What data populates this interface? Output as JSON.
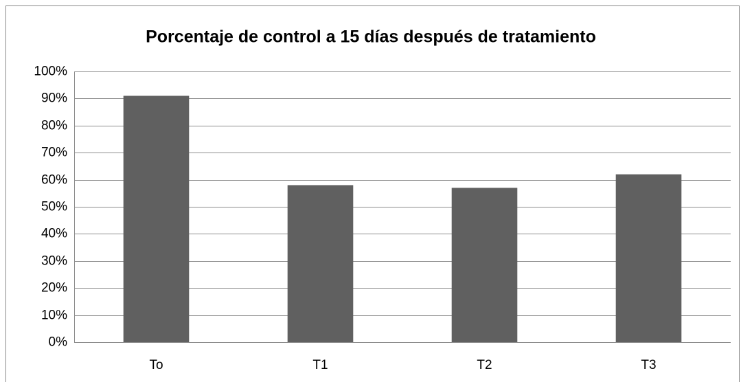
{
  "chart_data": {
    "type": "bar",
    "title": "Porcentaje de control a 15 días después de tratamiento",
    "categories": [
      "To",
      "T1",
      "T2",
      "T3"
    ],
    "values": [
      91,
      58,
      57,
      62
    ],
    "color": "#606060",
    "ylim": [
      0,
      100
    ],
    "yticks": [
      {
        "value": 0,
        "label": "0%"
      },
      {
        "value": 10,
        "label": "10%"
      },
      {
        "value": 20,
        "label": "20%"
      },
      {
        "value": 30,
        "label": "30%"
      },
      {
        "value": 40,
        "label": "40%"
      },
      {
        "value": 50,
        "label": "50%"
      },
      {
        "value": 60,
        "label": "60%"
      },
      {
        "value": 70,
        "label": "70%"
      },
      {
        "value": 80,
        "label": "80%"
      },
      {
        "value": 90,
        "label": "90%"
      },
      {
        "value": 100,
        "label": "100%"
      }
    ],
    "grid": true
  }
}
